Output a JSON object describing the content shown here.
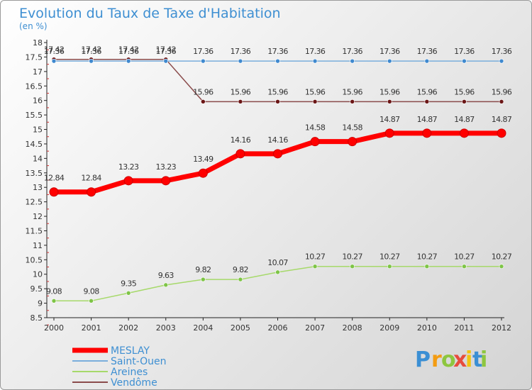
{
  "chart_data": {
    "type": "line",
    "title": "Evolution du Taux de Taxe d'Habitation",
    "subtitle": "(en %)",
    "x": [
      "2000",
      "2001",
      "2002",
      "2003",
      "2004",
      "2005",
      "2006",
      "2007",
      "2008",
      "2009",
      "2010",
      "2011",
      "2012"
    ],
    "ylim": [
      8.5,
      18
    ],
    "yticks": [
      "8.5",
      "9",
      "9.5",
      "10",
      "10.5",
      "11",
      "11.5",
      "12",
      "12.5",
      "13",
      "13.5",
      "14",
      "14.5",
      "15",
      "15.5",
      "16",
      "16.5",
      "17",
      "17.5",
      "18"
    ],
    "grid": false,
    "legend_position": "bottom-left",
    "series": [
      {
        "name": "MESLAY",
        "color": "#ff0000",
        "marker": "#ff0000",
        "values": [
          12.84,
          12.84,
          13.23,
          13.23,
          13.49,
          14.16,
          14.16,
          14.58,
          14.58,
          14.87,
          14.87,
          14.87,
          14.87
        ],
        "labels": [
          "12.84",
          "12.84",
          "13.23",
          "13.23",
          "13.49",
          "14.16",
          "14.16",
          "14.58",
          "14.58",
          "14.87",
          "14.87",
          "14.87",
          "14.87"
        ]
      },
      {
        "name": "Saint-Ouen",
        "color": "#7aaedc",
        "marker": "#3f89cf",
        "values": [
          17.36,
          17.36,
          17.36,
          17.36,
          17.36,
          17.36,
          17.36,
          17.36,
          17.36,
          17.36,
          17.36,
          17.36,
          17.36
        ],
        "labels": [
          "17.36",
          "17.36",
          "17.36",
          "17.36",
          "17.36",
          "17.36",
          "17.36",
          "17.36",
          "17.36",
          "17.36",
          "17.36",
          "17.36",
          "17.36"
        ]
      },
      {
        "name": "Areines",
        "color": "#a6d96a",
        "marker": "#7ec447",
        "values": [
          9.08,
          9.08,
          9.35,
          9.63,
          9.82,
          9.82,
          10.07,
          10.27,
          10.27,
          10.27,
          10.27,
          10.27,
          10.27
        ],
        "labels": [
          "9.08",
          "9.08",
          "9.35",
          "9.63",
          "9.82",
          "9.82",
          "10.07",
          "10.27",
          "10.27",
          "10.27",
          "10.27",
          "10.27",
          "10.27"
        ]
      },
      {
        "name": "Vendôme",
        "color": "#8a4b4b",
        "marker": "#6b1616",
        "values": [
          17.42,
          17.42,
          17.42,
          17.42,
          15.96,
          15.96,
          15.96,
          15.96,
          15.96,
          15.96,
          15.96,
          15.96,
          15.96
        ],
        "labels": [
          "17.42",
          "17.42",
          "17.42",
          "17.42",
          "15.96",
          "15.96",
          "15.96",
          "15.96",
          "15.96",
          "15.96",
          "15.96",
          "15.96",
          "15.96"
        ]
      }
    ]
  },
  "logo": {
    "letters": [
      "P",
      "r",
      "o",
      "x",
      "i",
      "t",
      "i"
    ],
    "colors": [
      "#3b8fd4",
      "#f39c12",
      "#8dc63f",
      "#e74c3c",
      "#f1c40f",
      "#3b8fd4",
      "#8dc63f"
    ]
  }
}
